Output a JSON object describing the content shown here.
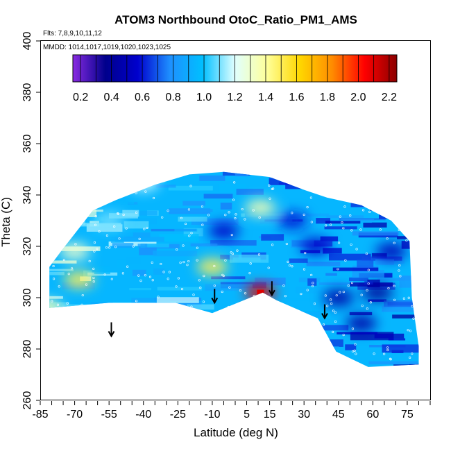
{
  "chart_data": {
    "type": "heatmap",
    "title": "ATOM3 Northbound OtoC_Ratio_PM1_AMS",
    "subtitle_flights": "Flts: 7,8,9,10,11,12",
    "subtitle_dates": "MMDD: 1014,1017,1019,1020,1023,1025",
    "xlabel": "Latitude (deg N)",
    "ylabel": "Theta (C)",
    "xlim": [
      -85,
      85
    ],
    "ylim": [
      260,
      400
    ],
    "x_ticks": [
      "-85",
      "-70",
      "-55",
      "-40",
      "-25",
      "-10",
      "5",
      "15",
      "30",
      "45",
      "60",
      "75"
    ],
    "y_ticks": [
      "260",
      "280",
      "300",
      "320",
      "340",
      "360",
      "380",
      "400"
    ],
    "colorbar": {
      "range": [
        0.15,
        2.25
      ],
      "ticks": [
        "0.2",
        "0.4",
        "0.6",
        "0.8",
        "1.0",
        "1.2",
        "1.4",
        "1.6",
        "1.8",
        "2.0",
        "2.2"
      ],
      "colors": [
        "#8a2be2",
        "#00008b",
        "#0000cd",
        "#1e90ff",
        "#00bfff",
        "#e0ffff",
        "#ffff99",
        "#ffd700",
        "#ff8c00",
        "#ff0000",
        "#8b0000"
      ]
    },
    "grid": false,
    "domain_outline": [
      [
        -81,
        296
      ],
      [
        -81,
        312
      ],
      [
        -76,
        318
      ],
      [
        -62,
        334
      ],
      [
        -52,
        338
      ],
      [
        -35,
        344
      ],
      [
        -20,
        348
      ],
      [
        -5,
        349
      ],
      [
        15,
        347
      ],
      [
        30,
        342
      ],
      [
        40,
        339
      ],
      [
        55,
        336
      ],
      [
        68,
        330
      ],
      [
        76,
        322
      ],
      [
        77,
        300
      ],
      [
        80,
        281
      ],
      [
        80,
        274
      ],
      [
        58,
        273
      ],
      [
        44,
        279
      ],
      [
        36,
        292
      ],
      [
        18,
        299
      ],
      [
        12,
        302
      ],
      [
        -10,
        294
      ],
      [
        -26,
        298
      ],
      [
        -55,
        298
      ],
      [
        -81,
        296
      ]
    ],
    "patches": [
      {
        "lat": -68,
        "theta": 307,
        "value": 1.5
      },
      {
        "lat": -70,
        "theta": 318,
        "value": 1.3
      },
      {
        "lat": -82,
        "theta": 296,
        "value": 1.35
      },
      {
        "lat": -10,
        "theta": 312,
        "value": 1.5
      },
      {
        "lat": 11,
        "theta": 335,
        "value": 1.35
      },
      {
        "lat": -40,
        "theta": 345,
        "value": 1.2
      },
      {
        "lat": -55,
        "theta": 330,
        "value": 1.1
      },
      {
        "lat": 11,
        "theta": 302,
        "value": 2.1
      },
      {
        "lat": 45,
        "theta": 300,
        "value": 0.45
      },
      {
        "lat": 62,
        "theta": 302,
        "value": 0.4
      },
      {
        "lat": 55,
        "theta": 290,
        "value": 0.45
      },
      {
        "lat": 35,
        "theta": 320,
        "value": 0.55
      },
      {
        "lat": -5,
        "theta": 326,
        "value": 0.55
      },
      {
        "lat": 25,
        "theta": 330,
        "value": 0.6
      },
      {
        "lat": 68,
        "theta": 318,
        "value": 0.5
      }
    ],
    "arrows": [
      {
        "lat": -54,
        "theta": 285
      },
      {
        "lat": -9,
        "theta": 298
      },
      {
        "lat": 16,
        "theta": 301
      },
      {
        "lat": 39,
        "theta": 292
      }
    ]
  }
}
